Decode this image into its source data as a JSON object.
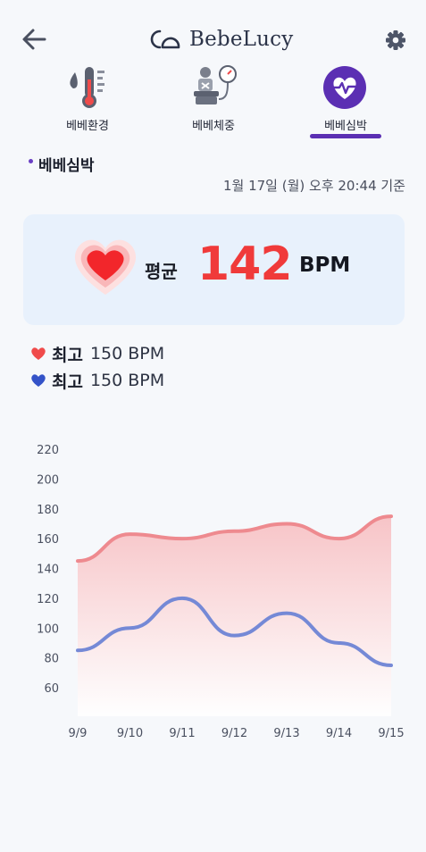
{
  "header": {
    "app_name": "BebeLucy",
    "back_icon": "back-arrow-icon",
    "settings_icon": "gear-icon"
  },
  "tabs": [
    {
      "label": "베베환경",
      "icon": "thermometer-icon",
      "active": false
    },
    {
      "label": "베베체중",
      "icon": "baby-scale-icon",
      "active": false
    },
    {
      "label": "베베심박",
      "icon": "heartbeat-icon",
      "active": true
    }
  ],
  "section": {
    "title": "베베심박",
    "timestamp": "1월 17일 (월) 오후 20:44 기준"
  },
  "average": {
    "label": "평균",
    "value": "142",
    "unit": "BPM"
  },
  "stats": [
    {
      "label": "최고",
      "value": "150 BPM",
      "color": "#f04b4b"
    },
    {
      "label": "최고",
      "value": "150 BPM",
      "color": "#3453c8"
    }
  ],
  "colors": {
    "accent": "#5b2fb3",
    "high_line": "#ee8a8f",
    "low_line": "#7589d6",
    "avg_value": "#f03a3a"
  },
  "chart_data": {
    "type": "line",
    "x": [
      "9/9",
      "9/10",
      "9/11",
      "9/12",
      "9/13",
      "9/14",
      "9/15"
    ],
    "series": [
      {
        "values": [
          145,
          163,
          160,
          165,
          170,
          160,
          175
        ],
        "color": "#ee8a8f",
        "fill": true
      },
      {
        "values": [
          85,
          100,
          120,
          95,
          110,
          90,
          75
        ],
        "color": "#7589d6",
        "fill": false
      }
    ],
    "yticks": [
      60,
      80,
      100,
      120,
      140,
      160,
      180,
      200,
      220
    ],
    "ylim": [
      50,
      220
    ],
    "grid": false
  }
}
